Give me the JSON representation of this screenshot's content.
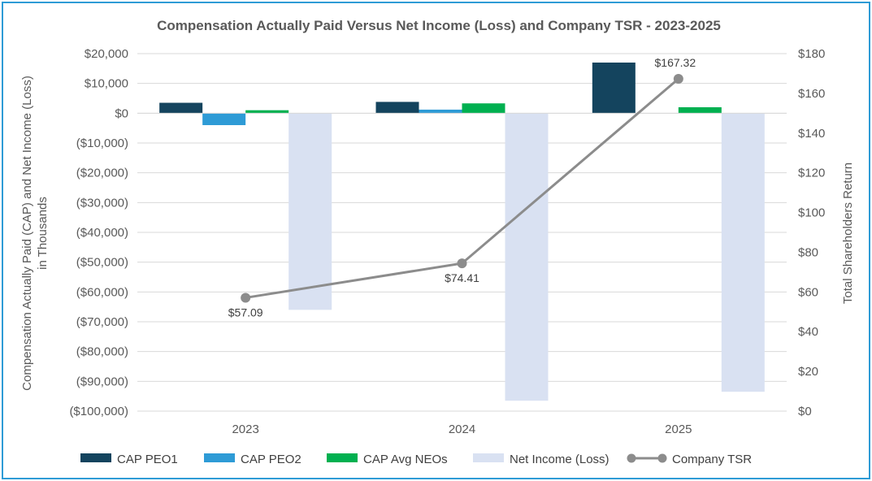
{
  "chart_data": {
    "type": "bar",
    "title": "Compensation Actually Paid Versus Net Income (Loss) and Company TSR - 2023-2025",
    "categories": [
      "2023",
      "2024",
      "2025"
    ],
    "ylabel_lines": [
      "Compensation Actually Paid (CAP) and Net Income (Loss)",
      "in Thousands"
    ],
    "y2label": "Total Shareholders Return",
    "ylim": [
      -100000,
      20000
    ],
    "y_ticks": [
      20000,
      10000,
      0,
      -10000,
      -20000,
      -30000,
      -40000,
      -50000,
      -60000,
      -70000,
      -80000,
      -90000,
      -100000
    ],
    "y_tick_labels": [
      "$20,000",
      "$10,000",
      "$0",
      "($10,000)",
      "($20,000)",
      "($30,000)",
      "($40,000)",
      "($50,000)",
      "($60,000)",
      "($70,000)",
      "($80,000)",
      "($90,000)",
      "($100,000)"
    ],
    "y2lim": [
      0,
      180
    ],
    "y2_ticks": [
      180,
      160,
      140,
      120,
      100,
      80,
      60,
      40,
      20,
      0
    ],
    "y2_tick_labels": [
      "$180",
      "$160",
      "$140",
      "$120",
      "$100",
      "$80",
      "$60",
      "$40",
      "$20",
      "$0"
    ],
    "grid": true,
    "legend_position": "bottom",
    "series": [
      {
        "name": "CAP PEO1",
        "color": "#14445e",
        "values": [
          3500,
          3800,
          17000
        ]
      },
      {
        "name": "CAP PEO2",
        "color": "#2e9bd6",
        "values": [
          -4000,
          1200,
          null
        ]
      },
      {
        "name": "CAP Avg NEOs",
        "color": "#00b050",
        "values": [
          1000,
          3300,
          2000
        ]
      },
      {
        "name": "Net Income (Loss)",
        "color": "#d9e1f2",
        "values": [
          -66000,
          -96500,
          -93500
        ]
      }
    ],
    "line_series": {
      "name": "Company TSR",
      "color": "#8c8c8c",
      "axis": "secondary",
      "values": [
        57.09,
        74.41,
        167.32
      ],
      "labels": [
        "$57.09",
        "$74.41",
        "$167.32"
      ]
    }
  }
}
